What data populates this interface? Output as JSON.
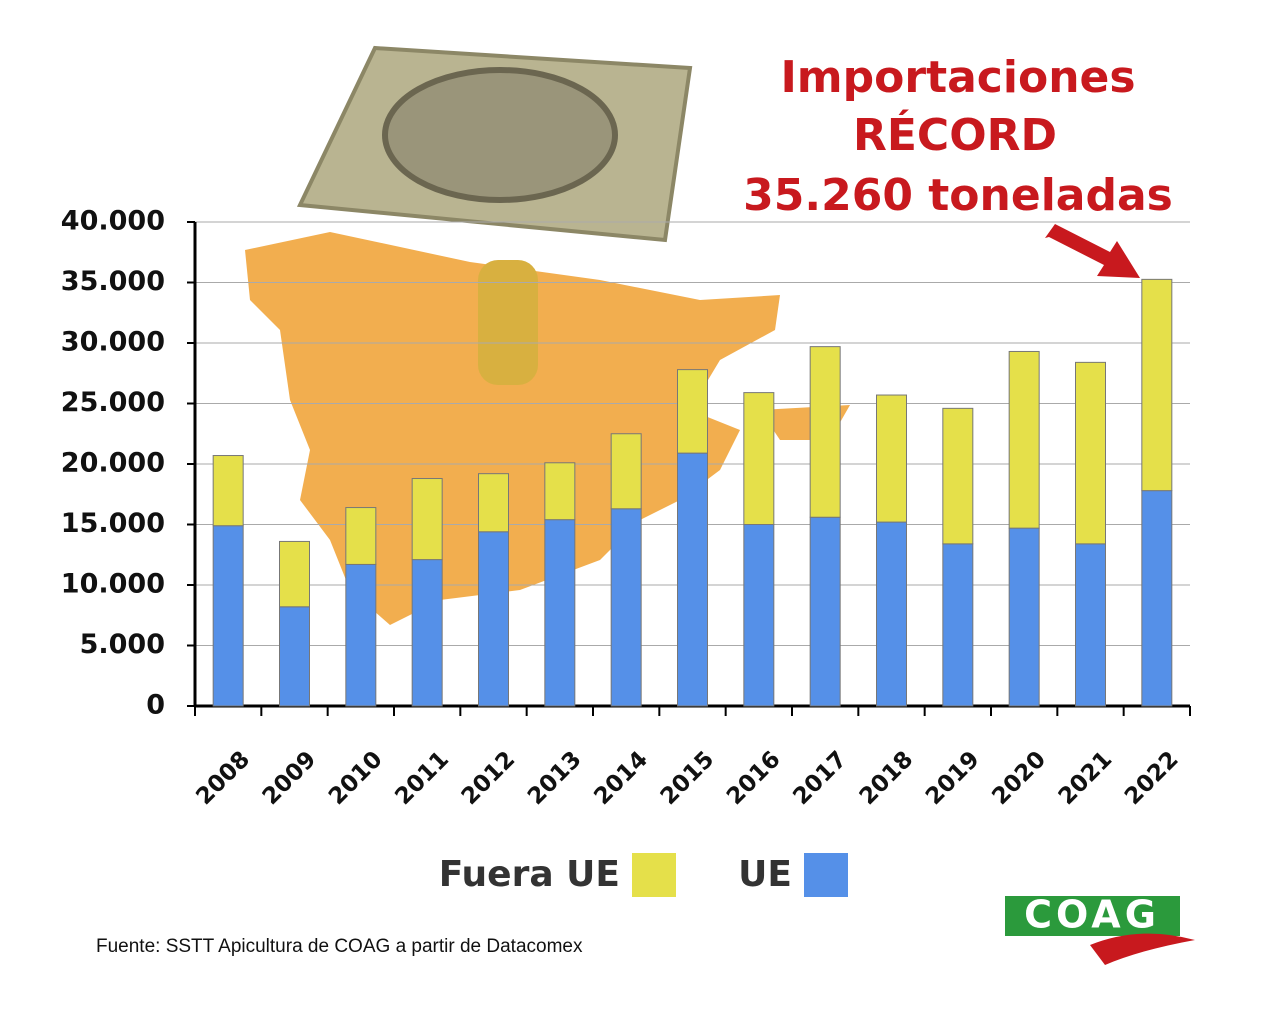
{
  "chart_data": {
    "type": "stacked_bar",
    "annotation": [
      "Importaciones",
      "RÉCORD",
      "35.260 toneladas"
    ],
    "categories": [
      "2008",
      "2009",
      "2010",
      "2011",
      "2012",
      "2013",
      "2014",
      "2015",
      "2016",
      "2017",
      "2018",
      "2019",
      "2020",
      "2021",
      "2022"
    ],
    "series": [
      {
        "name": "UE",
        "color": "#5590e8",
        "values": [
          14900,
          8200,
          11700,
          12100,
          14400,
          15400,
          16300,
          20900,
          15000,
          15600,
          15200,
          13400,
          14700,
          13400,
          17800
        ]
      },
      {
        "name": "Fuera UE",
        "color": "#e5e04a",
        "values": [
          5800,
          5400,
          4700,
          6700,
          4800,
          4700,
          6200,
          6900,
          10900,
          14100,
          10500,
          11200,
          14600,
          15000,
          17460
        ]
      }
    ],
    "ylim": [
      0,
      40000
    ],
    "yticks": [
      0,
      {
        "value": 5000,
        "label": "5.000"
      },
      {
        "value": 10000,
        "label": "10.000"
      },
      {
        "value": 15000,
        "label": "15.000"
      },
      {
        "value": 20000,
        "label": "20.000"
      },
      {
        "value": 25000,
        "label": "25.000"
      },
      {
        "value": 30000,
        "label": "30.000"
      },
      {
        "value": 35000,
        "label": "35.000"
      },
      {
        "value": 40000,
        "label": "40.000"
      }
    ],
    "grid": true,
    "source": "Fuente: SSTT Apicultura de COAG a partir de Datacomex",
    "logo": "COAG"
  }
}
